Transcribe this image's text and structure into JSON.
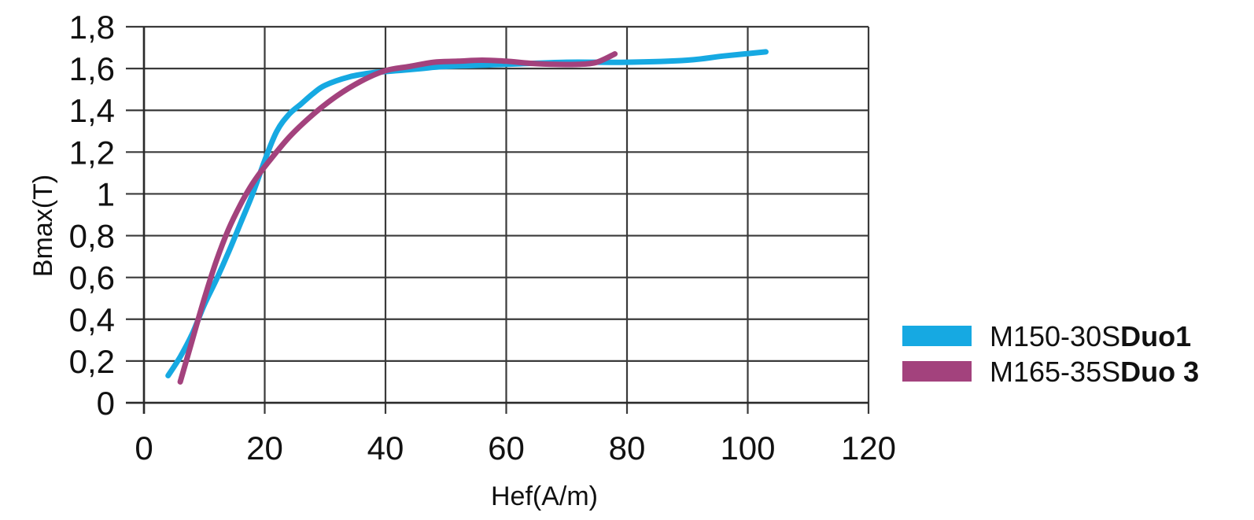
{
  "chart_data": {
    "type": "line",
    "xlabel": "Hef(A/m)",
    "ylabel": "Bmax(T)",
    "xlim": [
      0,
      120
    ],
    "ylim": [
      0,
      1.8
    ],
    "x_ticks": [
      "0",
      "20",
      "40",
      "60",
      "80",
      "100",
      "120"
    ],
    "y_ticks": [
      "0",
      "0,2",
      "0,4",
      "0,6",
      "0,8",
      "1",
      "1,2",
      "1,4",
      "1,6",
      "1,8"
    ],
    "grid": true,
    "legend_position": "bottom-right",
    "series": [
      {
        "name_prefix": "M150-30S",
        "name_suffix": "Duo1",
        "color": "#16a9e2",
        "points": [
          [
            4,
            0.13
          ],
          [
            6,
            0.22
          ],
          [
            8,
            0.33
          ],
          [
            10,
            0.47
          ],
          [
            12,
            0.59
          ],
          [
            14,
            0.72
          ],
          [
            16,
            0.86
          ],
          [
            18,
            1.0
          ],
          [
            20,
            1.16
          ],
          [
            22,
            1.3
          ],
          [
            24,
            1.38
          ],
          [
            26,
            1.43
          ],
          [
            28,
            1.48
          ],
          [
            30,
            1.52
          ],
          [
            34,
            1.56
          ],
          [
            38,
            1.58
          ],
          [
            42,
            1.59
          ],
          [
            46,
            1.6
          ],
          [
            50,
            1.61
          ],
          [
            60,
            1.62
          ],
          [
            70,
            1.63
          ],
          [
            80,
            1.63
          ],
          [
            90,
            1.64
          ],
          [
            96,
            1.66
          ],
          [
            103,
            1.68
          ]
        ]
      },
      {
        "name_prefix": "M165-35S",
        "name_suffix": "Duo 3",
        "color": "#a3427d",
        "points": [
          [
            6,
            0.1
          ],
          [
            8,
            0.3
          ],
          [
            10,
            0.5
          ],
          [
            12,
            0.68
          ],
          [
            14,
            0.83
          ],
          [
            16,
            0.95
          ],
          [
            18,
            1.05
          ],
          [
            20,
            1.13
          ],
          [
            24,
            1.27
          ],
          [
            28,
            1.38
          ],
          [
            32,
            1.47
          ],
          [
            36,
            1.54
          ],
          [
            40,
            1.59
          ],
          [
            44,
            1.61
          ],
          [
            48,
            1.63
          ],
          [
            52,
            1.635
          ],
          [
            56,
            1.64
          ],
          [
            60,
            1.635
          ],
          [
            64,
            1.625
          ],
          [
            68,
            1.62
          ],
          [
            72,
            1.62
          ],
          [
            75,
            1.63
          ],
          [
            78,
            1.67
          ]
        ]
      }
    ]
  }
}
